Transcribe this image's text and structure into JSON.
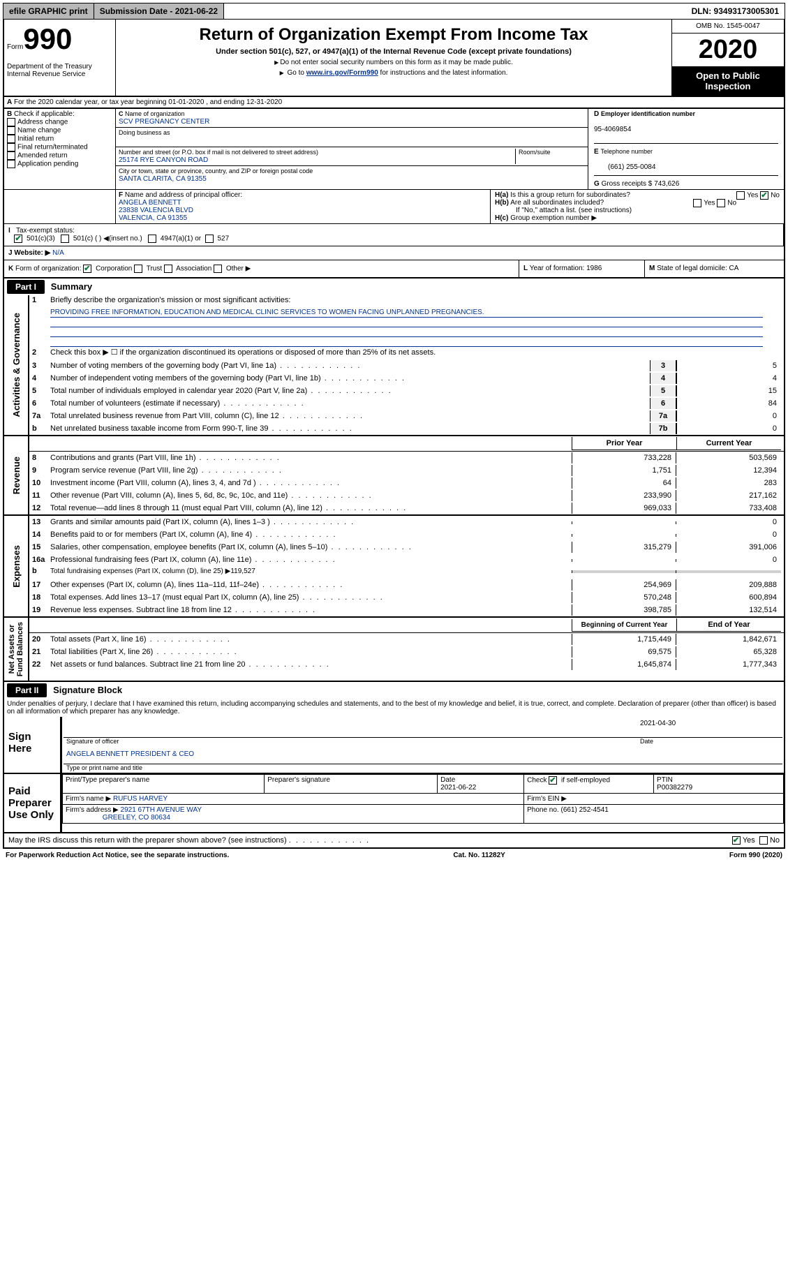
{
  "topbar": {
    "efile": "efile GRAPHIC print",
    "sub_label": "Submission Date - 2021-06-22",
    "dln": "DLN: 93493173005301"
  },
  "header": {
    "form_word": "Form",
    "form_num": "990",
    "dept": "Department of the Treasury\nInternal Revenue Service",
    "title": "Return of Organization Exempt From Income Tax",
    "subtitle": "Under section 501(c), 527, or 4947(a)(1) of the Internal Revenue Code (except private foundations)",
    "note1": "Do not enter social security numbers on this form as it may be made public.",
    "note2_pre": "Go to ",
    "note2_link": "www.irs.gov/Form990",
    "note2_post": " for instructions and the latest information.",
    "omb": "OMB No. 1545-0047",
    "year": "2020",
    "open": "Open to Public Inspection"
  },
  "section_a": "For the 2020 calendar year, or tax year beginning 01-01-2020    , and ending 12-31-2020",
  "check_b": {
    "label": "Check if applicable:",
    "items": [
      "Address change",
      "Name change",
      "Initial return",
      "Final return/terminated",
      "Amended return",
      "Application pending"
    ]
  },
  "org": {
    "c_label": "Name of organization",
    "c_name": "SCV PREGNANCY CENTER",
    "dba_label": "Doing business as",
    "addr_label": "Number and street (or P.O. box if mail is not delivered to street address)",
    "room_label": "Room/suite",
    "addr": "25174 RYE CANYON ROAD",
    "city_label": "City or town, state or province, country, and ZIP or foreign postal code",
    "city": "SANTA CLARITA, CA  91355",
    "d_label": "Employer identification number",
    "ein": "95-4069854",
    "e_label": "Telephone number",
    "phone": "(661) 255-0084",
    "g_label": "Gross receipts $",
    "gross": "743,626"
  },
  "officer": {
    "f_label": "Name and address of principal officer:",
    "name": "ANGELA BENNETT",
    "addr1": "23838 VALENCIA BLVD",
    "addr2": "VALENCIA, CA  91355"
  },
  "h": {
    "ha": "Is this a group return for subordinates?",
    "hb": "Are all subordinates included?",
    "hb_note": "If \"No,\" attach a list. (see instructions)",
    "hc": "Group exemption number ▶",
    "yes": "Yes",
    "no": "No"
  },
  "tax_status": {
    "i_label": "Tax-exempt status:",
    "opt1": "501(c)(3)",
    "opt2": "501(c) (   ) ◀(insert no.)",
    "opt3": "4947(a)(1) or",
    "opt4": "527"
  },
  "website": {
    "label": "Website: ▶",
    "val": "N/A"
  },
  "k": {
    "label": "Form of organization:",
    "corp": "Corporation",
    "trust": "Trust",
    "assoc": "Association",
    "other": "Other ▶"
  },
  "l": {
    "label": "Year of formation:",
    "val": "1986"
  },
  "m": {
    "label": "State of legal domicile:",
    "val": "CA"
  },
  "part1": {
    "label": "Part I",
    "title": "Summary"
  },
  "mission": {
    "q": "Briefly describe the organization's mission or most significant activities:",
    "text": "PROVIDING FREE INFORMATION, EDUCATION AND MEDICAL CLINIC SERVICES TO WOMEN FACING UNPLANNED PREGNANCIES."
  },
  "gov_lines": {
    "l2": "Check this box ▶ ☐ if the organization discontinued its operations or disposed of more than 25% of its net assets.",
    "l3": {
      "t": "Number of voting members of the governing body (Part VI, line 1a)",
      "n": "3",
      "v": "5"
    },
    "l4": {
      "t": "Number of independent voting members of the governing body (Part VI, line 1b)",
      "n": "4",
      "v": "4"
    },
    "l5": {
      "t": "Total number of individuals employed in calendar year 2020 (Part V, line 2a)",
      "n": "5",
      "v": "15"
    },
    "l6": {
      "t": "Total number of volunteers (estimate if necessary)",
      "n": "6",
      "v": "84"
    },
    "l7a": {
      "t": "Total unrelated business revenue from Part VIII, column (C), line 12",
      "n": "7a",
      "v": "0"
    },
    "l7b": {
      "t": "Net unrelated business taxable income from Form 990-T, line 39",
      "n": "7b",
      "v": "0"
    }
  },
  "rev_head": {
    "prior": "Prior Year",
    "curr": "Current Year"
  },
  "revenue": [
    {
      "n": "8",
      "t": "Contributions and grants (Part VIII, line 1h)",
      "p": "733,228",
      "c": "503,569"
    },
    {
      "n": "9",
      "t": "Program service revenue (Part VIII, line 2g)",
      "p": "1,751",
      "c": "12,394"
    },
    {
      "n": "10",
      "t": "Investment income (Part VIII, column (A), lines 3, 4, and 7d )",
      "p": "64",
      "c": "283"
    },
    {
      "n": "11",
      "t": "Other revenue (Part VIII, column (A), lines 5, 6d, 8c, 9c, 10c, and 11e)",
      "p": "233,990",
      "c": "217,162"
    },
    {
      "n": "12",
      "t": "Total revenue—add lines 8 through 11 (must equal Part VIII, column (A), line 12)",
      "p": "969,033",
      "c": "733,408"
    }
  ],
  "expenses": [
    {
      "n": "13",
      "t": "Grants and similar amounts paid (Part IX, column (A), lines 1–3 )",
      "p": "",
      "c": "0"
    },
    {
      "n": "14",
      "t": "Benefits paid to or for members (Part IX, column (A), line 4)",
      "p": "",
      "c": "0"
    },
    {
      "n": "15",
      "t": "Salaries, other compensation, employee benefits (Part IX, column (A), lines 5–10)",
      "p": "315,279",
      "c": "391,006"
    },
    {
      "n": "16a",
      "t": "Professional fundraising fees (Part IX, column (A), line 11e)",
      "p": "",
      "c": "0"
    },
    {
      "n": "b",
      "t": "Total fundraising expenses (Part IX, column (D), line 25) ▶119,527",
      "p": "",
      "c": ""
    },
    {
      "n": "17",
      "t": "Other expenses (Part IX, column (A), lines 11a–11d, 11f–24e)",
      "p": "254,969",
      "c": "209,888"
    },
    {
      "n": "18",
      "t": "Total expenses. Add lines 13–17 (must equal Part IX, column (A), line 25)",
      "p": "570,248",
      "c": "600,894"
    },
    {
      "n": "19",
      "t": "Revenue less expenses. Subtract line 18 from line 12",
      "p": "398,785",
      "c": "132,514"
    }
  ],
  "net_head": {
    "begin": "Beginning of Current Year",
    "end": "End of Year"
  },
  "net": [
    {
      "n": "20",
      "t": "Total assets (Part X, line 16)",
      "p": "1,715,449",
      "c": "1,842,671"
    },
    {
      "n": "21",
      "t": "Total liabilities (Part X, line 26)",
      "p": "69,575",
      "c": "65,328"
    },
    {
      "n": "22",
      "t": "Net assets or fund balances. Subtract line 21 from line 20",
      "p": "1,645,874",
      "c": "1,777,343"
    }
  ],
  "rot": {
    "gov": "Activities & Governance",
    "rev": "Revenue",
    "exp": "Expenses",
    "net": "Net Assets or\nFund Balances"
  },
  "part2": {
    "label": "Part II",
    "title": "Signature Block"
  },
  "sig_decl": "Under penalties of perjury, I declare that I have examined this return, including accompanying schedules and statements, and to the best of my knowledge and belief, it is true, correct, and complete. Declaration of preparer (other than officer) is based on all information of which preparer has any knowledge.",
  "sign": {
    "here": "Sign Here",
    "sig_officer": "Signature of officer",
    "date": "Date",
    "date_val": "2021-04-30",
    "name": "ANGELA BENNETT  PRESIDENT & CEO",
    "type_label": "Type or print name and title"
  },
  "preparer": {
    "here": "Paid Preparer Use Only",
    "print_label": "Print/Type preparer's name",
    "sig_label": "Preparer's signature",
    "date_label": "Date",
    "date_val": "2021-06-22",
    "check_label": "Check ☑ if self-employed",
    "ptin_label": "PTIN",
    "ptin": "P00382279",
    "firm_name_label": "Firm's name   ▶",
    "firm_name": "RUFUS HARVEY",
    "firm_ein_label": "Firm's EIN ▶",
    "firm_addr_label": "Firm's address ▶",
    "firm_addr": "2921 67TH AVENUE WAY",
    "firm_city": "GREELEY, CO  80634",
    "phone_label": "Phone no.",
    "phone": "(661) 252-4541"
  },
  "irs_discuss": "May the IRS discuss this return with the preparer shown above? (see instructions)",
  "footer": {
    "left": "For Paperwork Reduction Act Notice, see the separate instructions.",
    "mid": "Cat. No. 11282Y",
    "right": "Form 990 (2020)"
  }
}
